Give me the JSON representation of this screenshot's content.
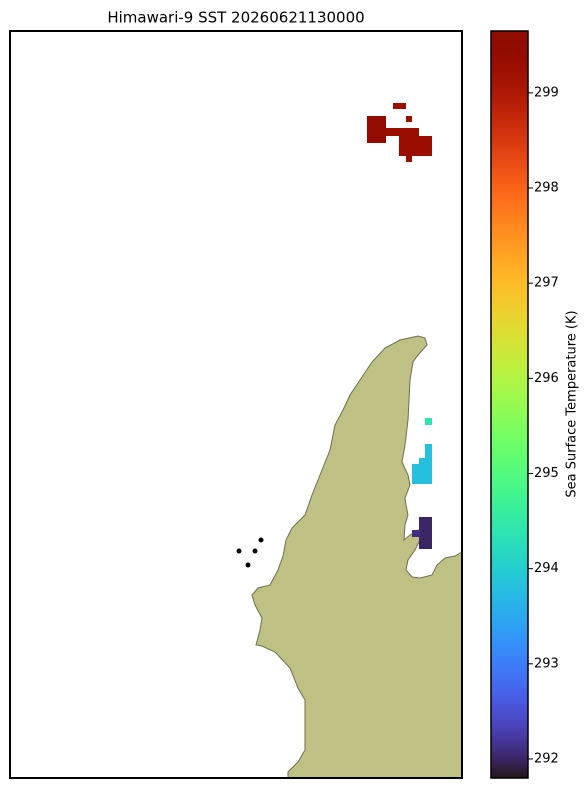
{
  "title": "Himawari-9 SST 20260621130000",
  "colorbar": {
    "label": "Sea Surface Temperature (K)",
    "lim": [
      291.8,
      299.65
    ],
    "ticks": [
      292,
      293,
      294,
      295,
      296,
      297,
      298,
      299
    ]
  },
  "cells": [
    299.5,
    299.3,
    299.3,
    299.3,
    299.3,
    299.3,
    294.4,
    293.8,
    293.8,
    293.8,
    292.0,
    292.1
  ]
}
